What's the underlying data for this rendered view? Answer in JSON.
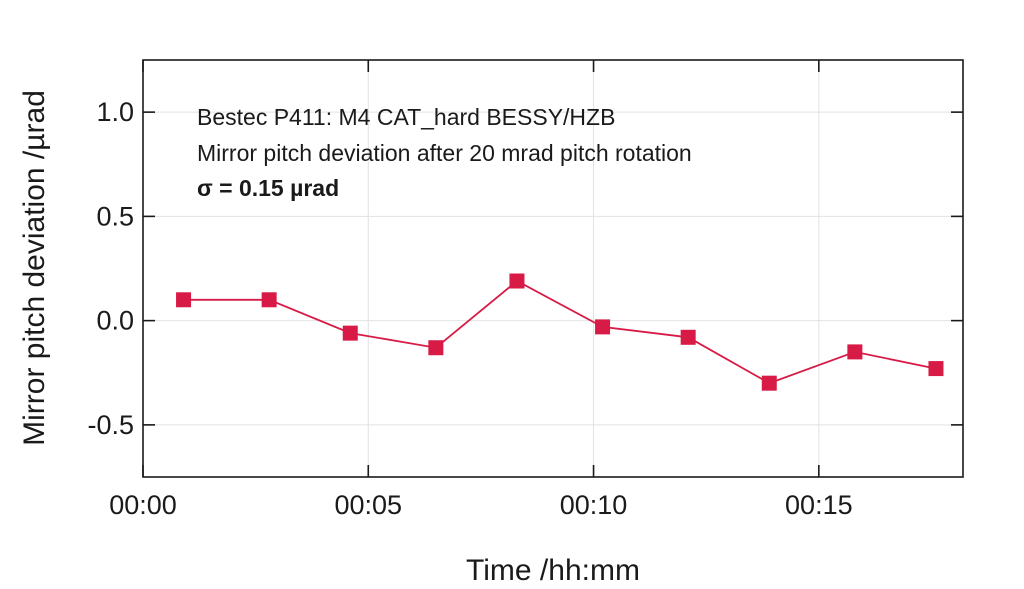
{
  "chart_data": {
    "type": "line",
    "title": "",
    "xlabel": "Time /hh:mm",
    "ylabel": "Mirror pitch deviation /µrad",
    "x_unit": "minutes",
    "xlim": [
      0,
      18.2
    ],
    "ylim": [
      -0.75,
      1.25
    ],
    "grid": true,
    "x_ticks": [
      {
        "value": 0,
        "label": "00:00"
      },
      {
        "value": 5,
        "label": "00:05"
      },
      {
        "value": 10,
        "label": "00:10"
      },
      {
        "value": 15,
        "label": "00:15"
      }
    ],
    "y_ticks": [
      {
        "value": 1.0,
        "label": "1.0"
      },
      {
        "value": 0.5,
        "label": "0.5"
      },
      {
        "value": 0.0,
        "label": "0.0"
      },
      {
        "value": -0.5,
        "label": "-0.5"
      }
    ],
    "annotation": {
      "line1": "Bestec P411: M4 CAT_hard BESSY/HZB",
      "line2": "Mirror pitch deviation after 20 mrad pitch rotation",
      "line3": "σ = 0.15 µrad"
    },
    "series": [
      {
        "name": "pitch deviation",
        "color": "#d81b46",
        "marker": "square",
        "x": [
          0.9,
          2.8,
          4.6,
          6.5,
          8.3,
          10.2,
          12.1,
          13.9,
          15.8,
          17.6
        ],
        "values": [
          0.1,
          0.1,
          -0.06,
          -0.13,
          0.19,
          -0.03,
          -0.08,
          -0.3,
          -0.15,
          -0.23
        ]
      }
    ]
  }
}
